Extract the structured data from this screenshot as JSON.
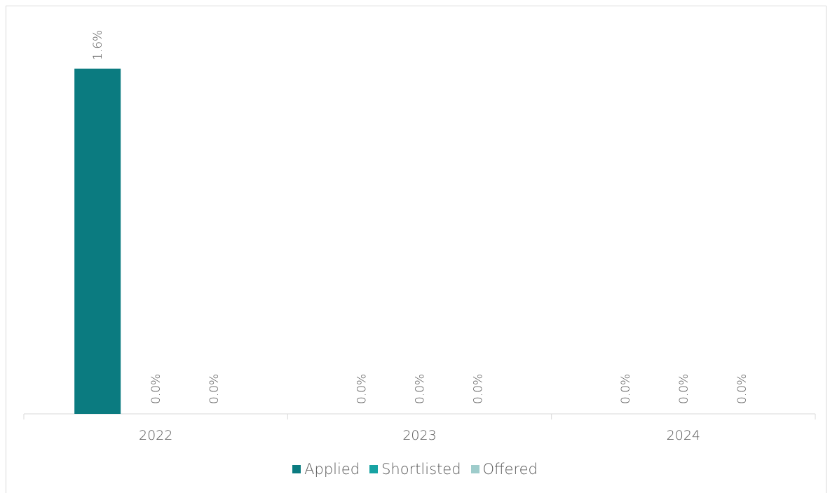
{
  "chart_data": {
    "type": "bar",
    "categories": [
      "2022",
      "2023",
      "2024"
    ],
    "series": [
      {
        "name": "Applied",
        "values": [
          1.6,
          null,
          null
        ],
        "labels": [
          "1.6%",
          "0.0%",
          "0.0%"
        ],
        "color": "#0b7b80"
      },
      {
        "name": "Shortlisted",
        "values": [
          0.0,
          0.0,
          0.0
        ],
        "labels": [
          "0.0%",
          "0.0%",
          "0.0%"
        ],
        "color": "#17a3a3"
      },
      {
        "name": "Offered",
        "values": [
          0.0,
          0.0,
          0.0
        ],
        "labels": [
          "0.0%",
          "0.0%",
          "0.0%"
        ],
        "color": "#9ecccb"
      }
    ],
    "ylim": [
      0,
      1.7
    ],
    "title": "",
    "xlabel": "",
    "ylabel": "",
    "grid": false,
    "legend_position": "bottom"
  }
}
